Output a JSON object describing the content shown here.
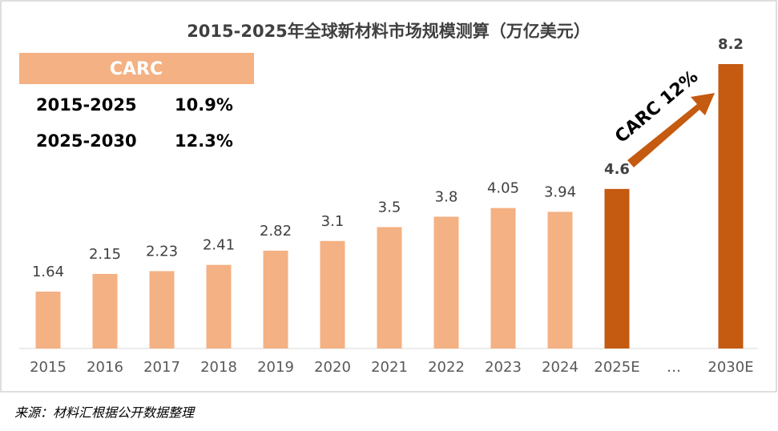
{
  "chart_data": {
    "type": "bar",
    "title": "2015-2025年全球新材料市场规模测算（万亿美元）",
    "categories": [
      "2015",
      "2016",
      "2017",
      "2018",
      "2019",
      "2020",
      "2021",
      "2022",
      "2023",
      "2024",
      "2025E",
      "…",
      "2030E"
    ],
    "values": [
      1.64,
      2.15,
      2.23,
      2.41,
      2.82,
      3.1,
      3.5,
      3.8,
      4.05,
      3.94,
      4.6,
      null,
      8.2
    ],
    "colors": [
      "#f4b183",
      "#f4b183",
      "#f4b183",
      "#f4b183",
      "#f4b183",
      "#f4b183",
      "#f4b183",
      "#f4b183",
      "#f4b183",
      "#f4b183",
      "#c55a11",
      null,
      "#c55a11"
    ],
    "annotation": "CARC 12%"
  },
  "carc_table": {
    "header": "CARC",
    "rows": [
      [
        "2015-2025",
        "10.9%"
      ],
      [
        "2025-2030",
        "12.3%"
      ]
    ]
  },
  "source": "来源：材料汇根据公开数据整理"
}
